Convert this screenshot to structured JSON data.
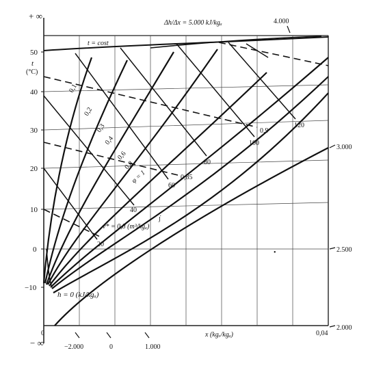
{
  "diagram": {
    "y_axis": {
      "top_symbol": "+ ∞",
      "bottom_symbol": "− ∞",
      "name": "t",
      "unit": "(°C)",
      "ticks": [
        "50",
        "40",
        "30",
        "20",
        "10",
        "0",
        "−10"
      ]
    },
    "x_axis": {
      "label": "x  (kgᵥ/kgₐ)",
      "start": "0",
      "end": "0,04"
    },
    "enthalpy_scale_bottom": [
      "−2.000",
      "0",
      "1.000"
    ],
    "enthalpy_scale_top": {
      "ratio_label": "Δh/Δx = 5.000  kJ/kgₐ",
      "value": "4.000"
    },
    "right_scale": [
      "3.000",
      "2.500",
      "2.000"
    ],
    "saturation_label": "t = cost",
    "relative_humidity": {
      "values": [
        "0,1",
        "0,2",
        "0,3",
        "0,4",
        "0,6",
        "0,8",
        "φ = 1"
      ]
    },
    "enthalpy_lines": {
      "values": [
        "20",
        "40",
        "60",
        "80",
        "100",
        "120"
      ],
      "zero_label": "h = 0  (kJ/kgₐ)"
    },
    "specific_volume": {
      "values": [
        "0,85",
        "0,9"
      ],
      "label": "v* = 0,8  (m³/kgₐ)"
    },
    "stray_marks": [
      "ȷ̇",
      "•"
    ]
  },
  "colors": {
    "ink": "#111111",
    "grid": "#333333",
    "background": "#ffffff"
  }
}
